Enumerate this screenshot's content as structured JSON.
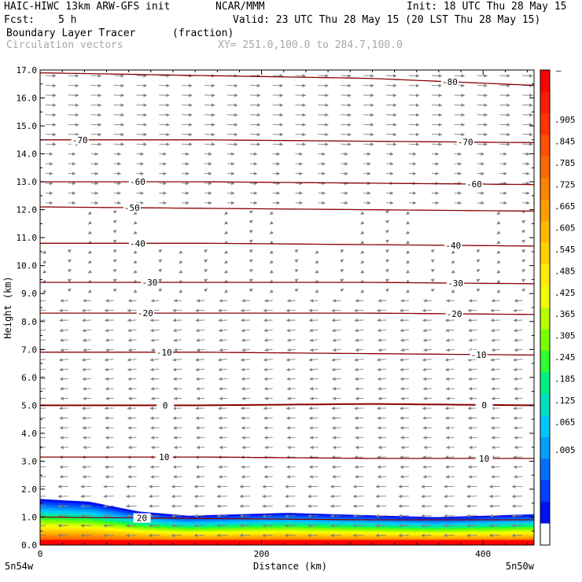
{
  "header": {
    "line1_left": "HAIC-HIWC 13km ARW-GFS init",
    "line1_mid": "NCAR/MMM",
    "line1_right": "Init: 18 UTC Thu 28 May 15",
    "fcst_label": "Fcst:",
    "fcst_value": "5 h",
    "valid": "Valid: 23 UTC Thu 28 May 15 (20 LST Thu 28 May 15)",
    "field_name": "Boundary Layer Tracer",
    "field_units": "(fraction)",
    "vectors_label": "Circulation vectors",
    "xy_label": "XY= 251.0,100.0 to 284.7,100.0"
  },
  "chart_data": {
    "type": "cross-section",
    "xlabel": "Distance (km)",
    "ylabel": "Height (km)",
    "xlim": [
      0,
      446
    ],
    "ylim": [
      0,
      17
    ],
    "x_ticks": [
      0,
      200,
      400
    ],
    "x_tick_labels": [
      "0",
      "200",
      "400"
    ],
    "y_ticks": [
      0.0,
      1.0,
      2.0,
      3.0,
      4.0,
      5.0,
      6.0,
      7.0,
      8.0,
      9.0,
      10.0,
      11.0,
      12.0,
      13.0,
      14.0,
      15.0,
      16.0,
      17.0
    ],
    "y_tick_labels": [
      "0.0",
      "1.0",
      "2.0",
      "3.0",
      "4.0",
      "5.0",
      "6.0",
      "7.0",
      "8.0",
      "9.0",
      "10.0",
      "11.0",
      "12.0",
      "13.0",
      "14.0",
      "15.0",
      "16.0",
      "17.0"
    ],
    "end_labels": {
      "left": "5n54w",
      "right": "5n50w"
    },
    "colorbar": {
      "labels": [
        ".905",
        ".845",
        ".785",
        ".725",
        ".665",
        ".605",
        ".545",
        ".485",
        ".425",
        ".365",
        ".305",
        ".245",
        ".185",
        ".125",
        ".065",
        ".005"
      ],
      "top_label": "–",
      "colors": [
        "#ff0000",
        "#ff1a00",
        "#ff3300",
        "#ff5000",
        "#ff6a00",
        "#ff8400",
        "#ff9e00",
        "#ffb800",
        "#ffd200",
        "#ffec00",
        "#f0ff00",
        "#b8ff00",
        "#7aff00",
        "#30ff30",
        "#00f080",
        "#00e0c0",
        "#00c8ff",
        "#00a0ff",
        "#0070ff",
        "#0040ff",
        "#0010f0",
        "#ffffff"
      ]
    },
    "temperature_contours": [
      {
        "label": "-80",
        "heights": [
          16.9,
          16.8,
          16.7,
          16.45
        ],
        "label_x": [
          370
        ]
      },
      {
        "label": "-70",
        "heights": [
          14.5,
          14.5,
          14.45,
          14.4
        ],
        "label_x": [
          36,
          384
        ]
      },
      {
        "label": "-60",
        "heights": [
          13.0,
          13.0,
          12.95,
          12.9
        ],
        "label_x": [
          88,
          392
        ]
      },
      {
        "label": "-50",
        "heights": [
          12.1,
          12.05,
          12.0,
          11.95
        ],
        "label_x": [
          83
        ]
      },
      {
        "label": "-40",
        "heights": [
          10.8,
          10.8,
          10.75,
          10.7
        ],
        "label_x": [
          88,
          373
        ]
      },
      {
        "label": "-30",
        "heights": [
          9.4,
          9.4,
          9.4,
          9.35
        ],
        "label_x": [
          99,
          375
        ]
      },
      {
        "label": "-20",
        "heights": [
          8.3,
          8.3,
          8.3,
          8.25
        ],
        "label_x": [
          95,
          374
        ]
      },
      {
        "label": "-10",
        "heights": [
          6.9,
          6.9,
          6.85,
          6.8
        ],
        "label_x": [
          112,
          396
        ]
      },
      {
        "label": "0",
        "heights": [
          5.0,
          5.0,
          5.05,
          5.0
        ],
        "label_x": [
          113,
          401
        ]
      },
      {
        "label": "10",
        "heights": [
          3.15,
          3.15,
          3.1,
          3.1
        ],
        "label_x": [
          112,
          401
        ]
      },
      {
        "label": "20",
        "heights": [
          1.0,
          0.95,
          0.9,
          0.9
        ],
        "label_x": [
          92
        ]
      }
    ],
    "boundary_layer_top_km": [
      1.65,
      1.55,
      1.2,
      1.05,
      1.1,
      1.15,
      1.1,
      1.05,
      1.0,
      1.05,
      1.1
    ]
  }
}
